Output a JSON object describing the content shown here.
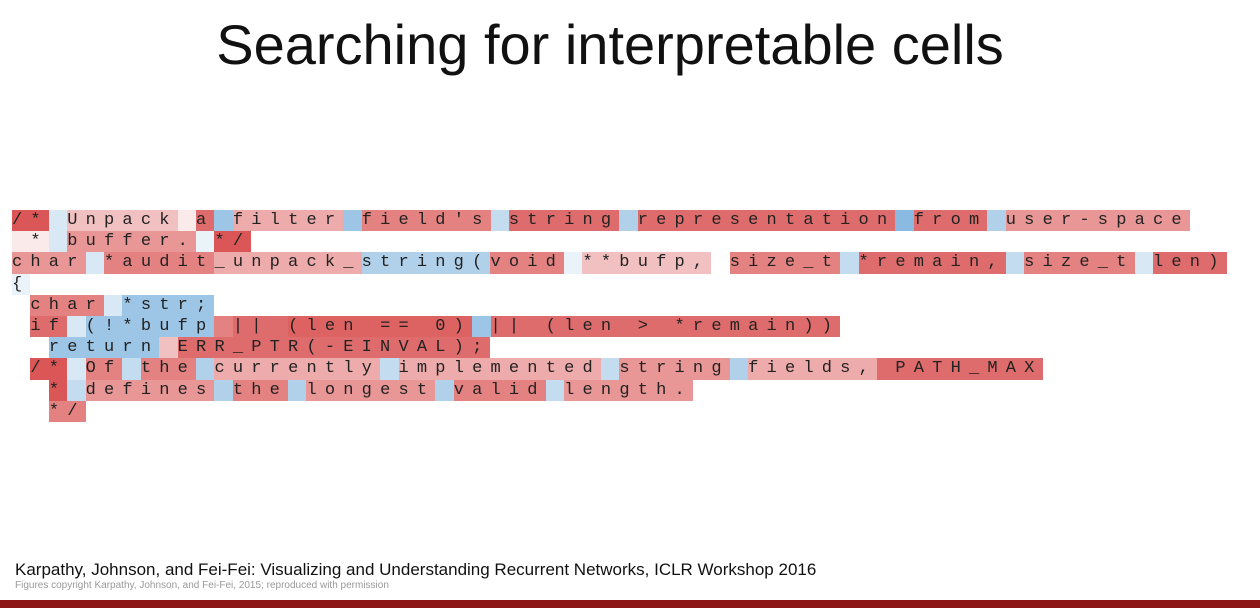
{
  "header": {
    "title": "Searching for  interpretable cells"
  },
  "code": {
    "lines": [
      [
        {
          "text": "/*",
          "activation": 0.8
        },
        {
          "text": " ",
          "activation": -0.2
        },
        {
          "text": "Unpack",
          "activation": 0.3
        },
        {
          "text": " ",
          "activation": 0.1
        },
        {
          "text": "a",
          "activation": 0.7
        },
        {
          "text": " ",
          "activation": -0.5
        },
        {
          "text": "filter",
          "activation": 0.4
        },
        {
          "text": " ",
          "activation": -0.5
        },
        {
          "text": "field's",
          "activation": 0.6
        },
        {
          "text": " ",
          "activation": -0.3
        },
        {
          "text": "string",
          "activation": 0.7
        },
        {
          "text": " ",
          "activation": -0.4
        },
        {
          "text": "representation",
          "activation": 0.7
        },
        {
          "text": " ",
          "activation": -0.6
        },
        {
          "text": "from",
          "activation": 0.7
        },
        {
          "text": " ",
          "activation": -0.4
        },
        {
          "text": "user-space",
          "activation": 0.5
        }
      ],
      [
        {
          "text": " *",
          "activation": 0.1
        },
        {
          "text": " ",
          "activation": -0.2
        },
        {
          "text": "buffer.",
          "activation": 0.5
        },
        {
          "text": " ",
          "activation": -0.1
        },
        {
          "text": "*/",
          "activation": 0.8
        }
      ],
      [
        {
          "text": "char",
          "activation": 0.5
        },
        {
          "text": " ",
          "activation": -0.2
        },
        {
          "text": "*audit",
          "activation": 0.6
        },
        {
          "text": "_unpack_",
          "activation": 0.4
        },
        {
          "text": "string(",
          "activation": -0.4
        },
        {
          "text": "void",
          "activation": 0.6
        },
        {
          "text": " ",
          "activation": -0.1
        },
        {
          "text": "**bufp,",
          "activation": 0.3
        },
        {
          "text": " ",
          "activation": 0
        },
        {
          "text": "size_t",
          "activation": 0.6
        },
        {
          "text": " ",
          "activation": -0.3
        },
        {
          "text": "*remain,",
          "activation": 0.7
        },
        {
          "text": " ",
          "activation": -0.3
        },
        {
          "text": "size_t",
          "activation": 0.6
        },
        {
          "text": " ",
          "activation": -0.2
        },
        {
          "text": "len)",
          "activation": 0.7
        }
      ],
      [
        {
          "text": "{",
          "activation": -0.1
        }
      ],
      [
        {
          "text": " ",
          "activation": 0
        },
        {
          "text": "char",
          "activation": 0.6
        },
        {
          "text": " ",
          "activation": -0.2
        },
        {
          "text": "*str;",
          "activation": -0.5
        }
      ],
      [
        {
          "text": " ",
          "activation": 0
        },
        {
          "text": "if",
          "activation": 0.7
        },
        {
          "text": " ",
          "activation": -0.2
        },
        {
          "text": "(!*bufp",
          "activation": -0.5
        },
        {
          "text": " ",
          "activation": 0.6
        },
        {
          "text": "||",
          "activation": 0.7
        },
        {
          "text": " ",
          "activation": 0.7
        },
        {
          "text": "(len == 0)",
          "activation": 0.75
        },
        {
          "text": " ",
          "activation": -0.5
        },
        {
          "text": "||",
          "activation": 0.7
        },
        {
          "text": " ",
          "activation": 0.7
        },
        {
          "text": "(len > *remain))",
          "activation": 0.7
        }
      ],
      [
        {
          "text": "  ",
          "activation": 0
        },
        {
          "text": "return",
          "activation": -0.5
        },
        {
          "text": " ",
          "activation": 0.3
        },
        {
          "text": "ERR_PTR(-EINVAL);",
          "activation": 0.7
        }
      ],
      [
        {
          "text": " ",
          "activation": 0
        },
        {
          "text": "/*",
          "activation": 0.8
        },
        {
          "text": " ",
          "activation": -0.2
        },
        {
          "text": "Of",
          "activation": 0.6
        },
        {
          "text": " ",
          "activation": -0.3
        },
        {
          "text": "the",
          "activation": 0.6
        },
        {
          "text": " ",
          "activation": -0.4
        },
        {
          "text": "currently",
          "activation": 0.4
        },
        {
          "text": " ",
          "activation": -0.3
        },
        {
          "text": "implemented",
          "activation": 0.4
        },
        {
          "text": " ",
          "activation": -0.3
        },
        {
          "text": "string",
          "activation": 0.5
        },
        {
          "text": " ",
          "activation": -0.4
        },
        {
          "text": "fields,",
          "activation": 0.4
        },
        {
          "text": " ",
          "activation": 0.7
        },
        {
          "text": "PATH_MAX",
          "activation": 0.7
        }
      ],
      [
        {
          "text": "  ",
          "activation": 0
        },
        {
          "text": "*",
          "activation": 0.8
        },
        {
          "text": " ",
          "activation": -0.3
        },
        {
          "text": "defines",
          "activation": 0.5
        },
        {
          "text": " ",
          "activation": -0.4
        },
        {
          "text": "the",
          "activation": 0.6
        },
        {
          "text": " ",
          "activation": -0.4
        },
        {
          "text": "longest",
          "activation": 0.5
        },
        {
          "text": " ",
          "activation": -0.4
        },
        {
          "text": "valid",
          "activation": 0.6
        },
        {
          "text": " ",
          "activation": -0.3
        },
        {
          "text": "length.",
          "activation": 0.5
        }
      ],
      [
        {
          "text": "  ",
          "activation": 0
        },
        {
          "text": "*/",
          "activation": 0.6
        }
      ]
    ]
  },
  "footer": {
    "citation": "Karpathy, Johnson, and Fei-Fei: Visualizing and Understanding Recurrent Networks, ICLR Workshop 2016",
    "copyright": "Figures copyright Karpathy, Johnson, and Fei-Fei, 2015; reproduced with permission"
  }
}
